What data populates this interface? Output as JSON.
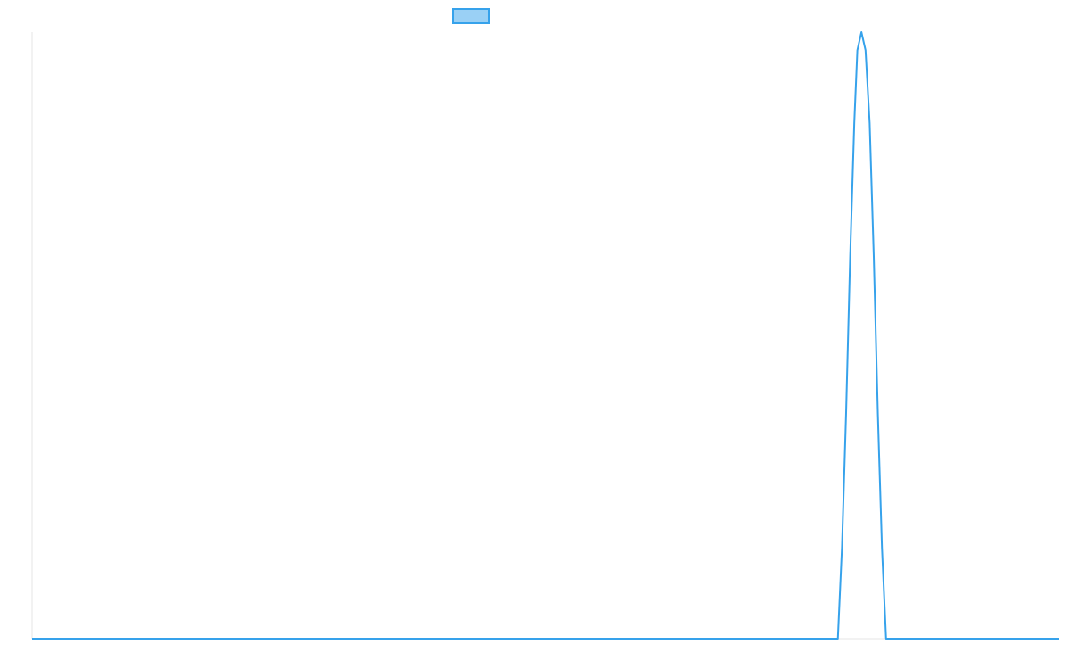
{
  "chart_data": {
    "type": "line",
    "title": "",
    "xlabel": "",
    "ylabel": "",
    "grid": false,
    "legend": {
      "position": "top-center",
      "entries": [
        {
          "label": "",
          "color": "#36a2eb",
          "fill": "#9ad0f5"
        }
      ]
    },
    "x_range": [
      0,
      1
    ],
    "y_range": [
      0,
      1
    ],
    "series": [
      {
        "color": "#36a2eb",
        "x": [
          0.0,
          0.785,
          0.789,
          0.793,
          0.797,
          0.801,
          0.804,
          0.808,
          0.812,
          0.816,
          0.82,
          0.824,
          0.828,
          0.832,
          0.836,
          0.84,
          0.844,
          0.848,
          0.852,
          0.856,
          0.86,
          0.864,
          1.0
        ],
        "y": [
          0.0,
          0.0,
          0.15,
          0.37,
          0.63,
          0.85,
          0.97,
          1.0,
          0.97,
          0.85,
          0.63,
          0.37,
          0.15,
          0.0,
          0.0,
          0.0,
          0.0,
          0.0,
          0.0,
          0.0,
          0.0,
          0.0,
          0.0
        ]
      }
    ]
  }
}
